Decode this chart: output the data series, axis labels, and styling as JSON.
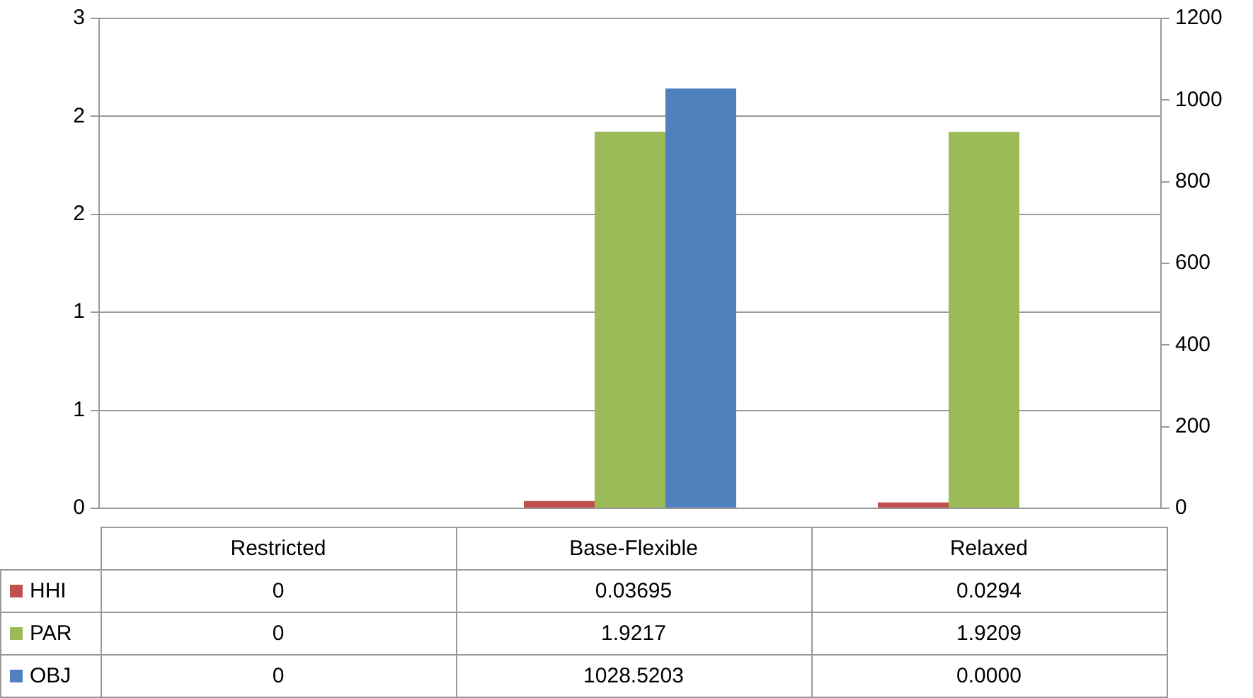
{
  "chart_data": {
    "type": "bar",
    "categories": [
      "Restricted",
      "Base-Flexible",
      "Relaxed"
    ],
    "series": [
      {
        "name": "HHI",
        "color": "#c0504d",
        "values": [
          0,
          0.03695,
          0.0294
        ],
        "value_labels": [
          "0",
          "0.03695",
          "0.0294"
        ]
      },
      {
        "name": "PAR",
        "color": "#9bbb59",
        "values": [
          0,
          1.9217,
          1.9209
        ],
        "value_labels": [
          "0",
          "1.9217",
          "1.9209"
        ]
      },
      {
        "name": "OBJ",
        "color": "#4f81bd",
        "axis": "y2",
        "values": [
          0,
          1028.5203,
          0
        ],
        "value_labels": [
          "0",
          "1028.5203",
          "0.0000"
        ]
      }
    ],
    "ylim": [
      0,
      2.5
    ],
    "yticks": [
      0,
      {
        "value": 0.5,
        "label": "1"
      },
      1,
      {
        "value": 1.5,
        "label": "2"
      },
      2,
      {
        "value": 2.5,
        "label": "3"
      }
    ],
    "y2lim": [
      0,
      1200
    ],
    "y2ticks": [
      0,
      200,
      400,
      600,
      800,
      1000,
      1200
    ],
    "grid": "y",
    "legend": "bottom"
  }
}
